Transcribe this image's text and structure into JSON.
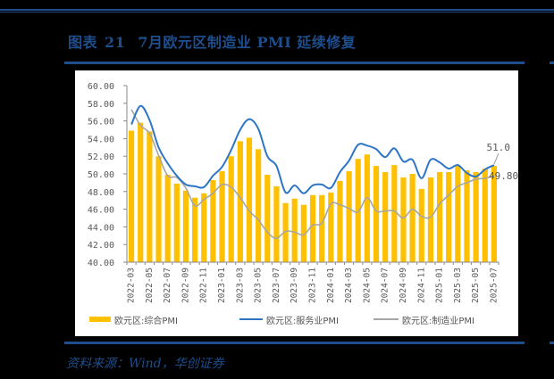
{
  "header": {
    "figure_label": "图表",
    "figure_number": "21",
    "title": "7月欧元区制造业 PMI 延续修复"
  },
  "source": "资料来源：Wind，华创证券",
  "colors": {
    "brand_blue": "#1f4e8c",
    "composite_bar": "#ffc000",
    "services_line": "#2e75c6",
    "manufacturing_line": "#a6a6a6",
    "axis": "#888888",
    "tick_label": "#595959"
  },
  "chart_data": {
    "type": "bar+line",
    "title": "7月欧元区制造业 PMI 延续修复",
    "xlabel": "",
    "ylabel": "",
    "ylim": [
      40,
      60
    ],
    "yticks": [
      "40.00",
      "42.00",
      "44.00",
      "46.00",
      "48.00",
      "50.00",
      "52.00",
      "54.00",
      "56.00",
      "58.00",
      "60.00"
    ],
    "grid": false,
    "legend_position": "bottom",
    "x": [
      "2022-03",
      "2022-04",
      "2022-05",
      "2022-06",
      "2022-07",
      "2022-08",
      "2022-09",
      "2022-10",
      "2022-11",
      "2022-12",
      "2023-01",
      "2023-02",
      "2023-03",
      "2023-04",
      "2023-05",
      "2023-06",
      "2023-07",
      "2023-08",
      "2023-09",
      "2023-10",
      "2023-11",
      "2023-12",
      "2024-01",
      "2024-02",
      "2024-03",
      "2024-04",
      "2024-05",
      "2024-06",
      "2024-07",
      "2024-08",
      "2024-09",
      "2024-10",
      "2024-11",
      "2024-12",
      "2025-01",
      "2025-02",
      "2025-03",
      "2025-04",
      "2025-05",
      "2025-06",
      "2025-07"
    ],
    "xtick_labels": [
      "2022-03",
      "2022-05",
      "2022-07",
      "2022-09",
      "2022-11",
      "2023-01",
      "2023-03",
      "2023-05",
      "2023-07",
      "2023-09",
      "2023-11",
      "2024-01",
      "2024-03",
      "2024-05",
      "2024-07",
      "2024-09",
      "2024-11",
      "2025-01",
      "2025-03",
      "2025-05",
      "2025-07"
    ],
    "series": [
      {
        "name": "欧元区:综合PMI",
        "type": "bar",
        "values": [
          54.9,
          55.8,
          54.8,
          52.0,
          49.9,
          48.9,
          48.1,
          47.3,
          47.8,
          49.3,
          50.3,
          52.0,
          53.7,
          54.1,
          52.8,
          49.9,
          48.6,
          46.7,
          47.2,
          46.5,
          47.6,
          47.6,
          47.9,
          49.2,
          50.3,
          51.7,
          52.2,
          50.9,
          50.2,
          51.0,
          49.6,
          50.0,
          48.3,
          49.6,
          50.2,
          50.2,
          50.9,
          50.4,
          50.2,
          50.6,
          50.9
        ]
      },
      {
        "name": "欧元区:服务业PMI",
        "type": "line",
        "values": [
          55.6,
          57.7,
          56.1,
          53.0,
          51.2,
          49.8,
          48.8,
          48.6,
          48.5,
          49.8,
          50.8,
          52.7,
          55.0,
          56.2,
          55.1,
          52.0,
          50.9,
          47.9,
          48.7,
          47.8,
          48.7,
          48.8,
          48.4,
          50.2,
          51.5,
          53.3,
          53.2,
          52.8,
          51.9,
          52.9,
          51.4,
          51.6,
          49.5,
          51.6,
          51.3,
          50.6,
          51.0,
          50.1,
          49.7,
          50.5,
          51.0
        ]
      },
      {
        "name": "欧元区:制造业PMI",
        "type": "line",
        "values": [
          57.3,
          55.5,
          54.6,
          52.1,
          49.8,
          49.6,
          48.4,
          46.4,
          47.1,
          47.8,
          48.8,
          48.5,
          47.3,
          45.8,
          44.8,
          43.4,
          42.7,
          43.5,
          43.4,
          43.1,
          44.2,
          44.4,
          46.6,
          46.5,
          46.1,
          45.7,
          47.3,
          45.8,
          45.8,
          45.8,
          45.0,
          46.0,
          45.2,
          45.1,
          46.6,
          47.6,
          48.6,
          49.0,
          49.4,
          49.5,
          49.8
        ]
      }
    ],
    "annotations": [
      {
        "text": "51.0",
        "series": "欧元区:服务业PMI",
        "x": "2025-07"
      },
      {
        "text": "49.80",
        "series": "欧元区:制造业PMI",
        "x": "2025-07"
      }
    ]
  },
  "legend": [
    {
      "label": "欧元区:综合PMI"
    },
    {
      "label": "欧元区:服务业PMI"
    },
    {
      "label": "欧元区:制造业PMI"
    }
  ]
}
